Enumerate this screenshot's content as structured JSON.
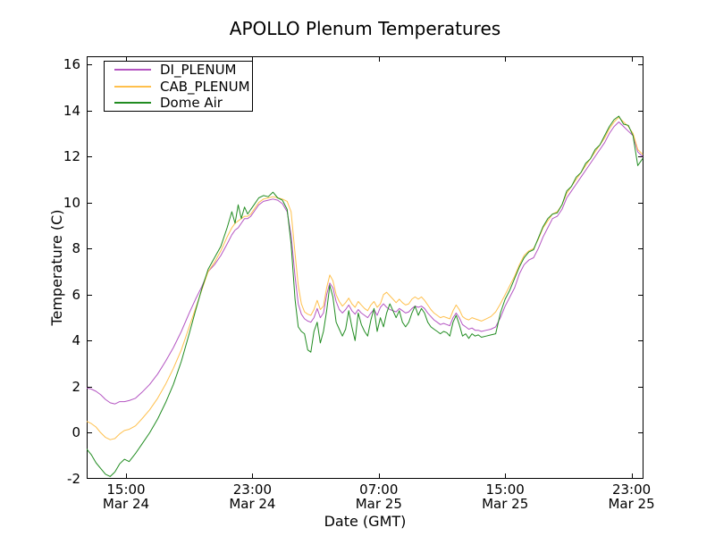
{
  "title": "APOLLO Plenum Temperatures",
  "axes": {
    "xlabel": "Date (GMT)",
    "ylabel": "Temperature (C)",
    "x_ticks": [
      {
        "t": 15,
        "time": "15:00",
        "date": "Mar 24"
      },
      {
        "t": 23,
        "time": "23:00",
        "date": "Mar 24"
      },
      {
        "t": 31,
        "time": "07:00",
        "date": "Mar 25"
      },
      {
        "t": 39,
        "time": "15:00",
        "date": "Mar 25"
      },
      {
        "t": 47,
        "time": "23:00",
        "date": "Mar 25"
      }
    ],
    "y_ticks": [
      16,
      14,
      12,
      10,
      8,
      6,
      4,
      2,
      0,
      -2
    ],
    "tick_length": 5,
    "axis_color": "#000000"
  },
  "chart_data": {
    "type": "line",
    "title": "APOLLO Plenum Temperatures",
    "xlabel": "Date (GMT)",
    "ylabel": "Temperature (C)",
    "x_unit": "hours since Mar 24 00:00 GMT",
    "xlim": [
      12.51,
      47.76
    ],
    "ylim": [
      -2,
      16.35
    ],
    "grid": false,
    "legend_position": "upper left",
    "x": [
      12.5,
      12.8,
      13.1,
      13.4,
      13.7,
      14.0,
      14.3,
      14.6,
      14.9,
      15.2,
      15.6,
      16.0,
      16.5,
      17.0,
      17.5,
      18.0,
      18.5,
      19.0,
      19.4,
      19.8,
      20.2,
      20.6,
      21.0,
      21.4,
      21.7,
      21.9,
      22.1,
      22.3,
      22.5,
      22.7,
      22.9,
      23.1,
      23.4,
      23.7,
      24.0,
      24.3,
      24.6,
      24.9,
      25.2,
      25.45,
      25.7,
      25.9,
      26.1,
      26.3,
      26.5,
      26.7,
      26.9,
      27.1,
      27.3,
      27.5,
      27.7,
      27.9,
      28.1,
      28.3,
      28.5,
      28.7,
      28.9,
      29.1,
      29.3,
      29.5,
      29.7,
      29.9,
      30.1,
      30.3,
      30.5,
      30.7,
      30.9,
      31.1,
      31.3,
      31.5,
      31.7,
      31.9,
      32.1,
      32.3,
      32.5,
      32.7,
      32.9,
      33.1,
      33.3,
      33.5,
      33.7,
      33.9,
      34.1,
      34.3,
      34.5,
      34.7,
      34.9,
      35.1,
      35.3,
      35.5,
      35.7,
      35.9,
      36.1,
      36.3,
      36.5,
      36.7,
      36.9,
      37.1,
      37.3,
      37.5,
      37.8,
      38.1,
      38.4,
      38.7,
      39.0,
      39.3,
      39.6,
      39.9,
      40.2,
      40.5,
      40.8,
      41.1,
      41.4,
      41.7,
      42.0,
      42.3,
      42.6,
      42.9,
      43.2,
      43.5,
      43.8,
      44.1,
      44.4,
      44.7,
      45.0,
      45.3,
      45.6,
      45.9,
      46.2,
      46.5,
      46.8,
      47.1,
      47.4,
      47.7
    ],
    "series": [
      {
        "name": "DI_PLENUM",
        "color": "#B455C2",
        "values": [
          1.95,
          1.9,
          1.8,
          1.65,
          1.45,
          1.3,
          1.25,
          1.35,
          1.35,
          1.4,
          1.5,
          1.75,
          2.1,
          2.55,
          3.1,
          3.7,
          4.4,
          5.2,
          5.8,
          6.35,
          7.0,
          7.3,
          7.7,
          8.2,
          8.6,
          8.8,
          8.9,
          9.1,
          9.3,
          9.3,
          9.4,
          9.6,
          9.9,
          10.05,
          10.1,
          10.15,
          10.1,
          9.95,
          9.6,
          8.6,
          6.8,
          5.6,
          5.15,
          4.95,
          4.85,
          4.8,
          5.0,
          5.4,
          5.0,
          5.2,
          6.0,
          6.5,
          6.3,
          5.7,
          5.35,
          5.2,
          5.35,
          5.55,
          5.3,
          5.15,
          5.35,
          5.2,
          5.1,
          5.0,
          5.2,
          5.35,
          5.1,
          5.45,
          5.6,
          5.45,
          5.35,
          5.3,
          5.25,
          5.4,
          5.3,
          5.2,
          5.25,
          5.4,
          5.5,
          5.45,
          5.5,
          5.4,
          5.2,
          5.05,
          4.9,
          4.8,
          4.7,
          4.75,
          4.7,
          4.65,
          5.0,
          5.2,
          5.0,
          4.7,
          4.6,
          4.5,
          4.55,
          4.45,
          4.45,
          4.4,
          4.45,
          4.5,
          4.6,
          5.0,
          5.5,
          5.9,
          6.3,
          6.9,
          7.3,
          7.5,
          7.6,
          8.0,
          8.5,
          8.9,
          9.3,
          9.4,
          9.7,
          10.2,
          10.5,
          10.8,
          11.1,
          11.4,
          11.7,
          12.0,
          12.3,
          12.6,
          13.0,
          13.3,
          13.5,
          13.3,
          13.1,
          12.9,
          12.2,
          12.0
        ]
      },
      {
        "name": "CAB_PLENUM",
        "color": "#FFC04D",
        "values": [
          0.5,
          0.4,
          0.25,
          0.0,
          -0.2,
          -0.3,
          -0.25,
          -0.05,
          0.1,
          0.15,
          0.3,
          0.6,
          1.0,
          1.5,
          2.1,
          2.8,
          3.6,
          4.6,
          5.4,
          6.2,
          7.0,
          7.4,
          7.9,
          8.5,
          8.9,
          9.1,
          9.2,
          9.3,
          9.4,
          9.4,
          9.5,
          9.7,
          10.0,
          10.15,
          10.2,
          10.25,
          10.2,
          10.15,
          10.05,
          9.6,
          7.8,
          6.4,
          5.6,
          5.25,
          5.15,
          5.1,
          5.35,
          5.75,
          5.35,
          5.5,
          6.3,
          6.85,
          6.6,
          6.0,
          5.7,
          5.5,
          5.65,
          5.85,
          5.6,
          5.45,
          5.7,
          5.55,
          5.4,
          5.3,
          5.55,
          5.7,
          5.45,
          5.6,
          6.0,
          6.1,
          5.95,
          5.8,
          5.65,
          5.8,
          5.65,
          5.55,
          5.6,
          5.8,
          5.9,
          5.8,
          5.9,
          5.75,
          5.55,
          5.35,
          5.2,
          5.1,
          5.0,
          5.05,
          5.0,
          4.95,
          5.3,
          5.55,
          5.35,
          5.05,
          4.95,
          4.9,
          5.0,
          4.95,
          4.9,
          4.85,
          4.95,
          5.05,
          5.25,
          5.6,
          6.0,
          6.4,
          6.8,
          7.3,
          7.7,
          7.9,
          8.0,
          8.4,
          8.9,
          9.2,
          9.5,
          9.6,
          9.9,
          10.4,
          10.7,
          11.0,
          11.3,
          11.6,
          11.9,
          12.2,
          12.5,
          12.8,
          13.2,
          13.5,
          13.7,
          13.5,
          13.3,
          13.0,
          12.3,
          12.1
        ]
      },
      {
        "name": "Dome Air",
        "color": "#218C21",
        "values": [
          -0.7,
          -0.95,
          -1.3,
          -1.55,
          -1.8,
          -1.9,
          -1.7,
          -1.35,
          -1.15,
          -1.25,
          -0.9,
          -0.5,
          0.0,
          0.6,
          1.3,
          2.1,
          3.1,
          4.3,
          5.3,
          6.25,
          7.1,
          7.6,
          8.1,
          8.9,
          9.6,
          9.1,
          9.9,
          9.3,
          9.8,
          9.5,
          9.7,
          9.9,
          10.2,
          10.3,
          10.25,
          10.45,
          10.2,
          10.1,
          9.7,
          8.2,
          5.8,
          4.6,
          4.4,
          4.3,
          3.6,
          3.5,
          4.4,
          4.8,
          3.9,
          4.4,
          5.3,
          6.4,
          5.9,
          4.8,
          4.5,
          4.2,
          4.5,
          5.3,
          4.6,
          4.0,
          5.2,
          4.7,
          4.4,
          4.2,
          4.9,
          5.4,
          4.4,
          5.0,
          4.6,
          5.2,
          5.6,
          5.3,
          5.0,
          5.3,
          4.8,
          4.6,
          4.8,
          5.2,
          5.5,
          5.1,
          5.4,
          5.2,
          4.8,
          4.6,
          4.5,
          4.4,
          4.3,
          4.4,
          4.35,
          4.2,
          4.8,
          5.1,
          4.7,
          4.2,
          4.3,
          4.1,
          4.3,
          4.2,
          4.25,
          4.15,
          4.2,
          4.25,
          4.3,
          5.2,
          5.8,
          6.2,
          6.7,
          7.2,
          7.6,
          7.85,
          7.95,
          8.45,
          8.95,
          9.3,
          9.5,
          9.55,
          9.9,
          10.5,
          10.7,
          11.1,
          11.3,
          11.7,
          11.9,
          12.3,
          12.5,
          12.9,
          13.3,
          13.6,
          13.75,
          13.4,
          13.35,
          12.9,
          11.6,
          11.9
        ]
      }
    ]
  }
}
